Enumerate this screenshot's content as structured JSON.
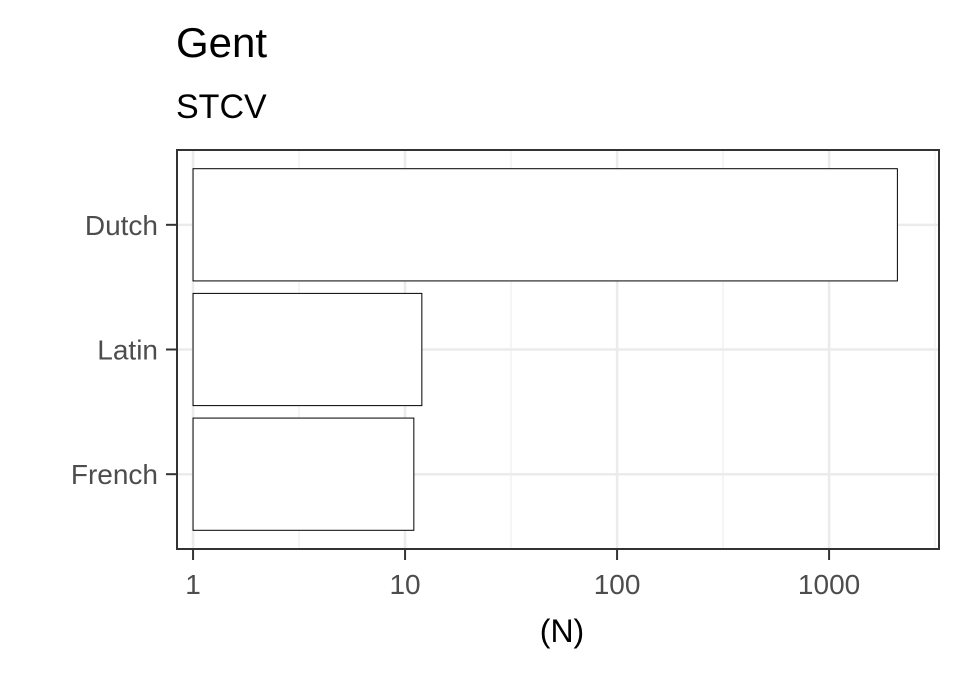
{
  "chart_data": {
    "type": "bar",
    "orientation": "horizontal",
    "title": "Gent",
    "subtitle": "STCV",
    "xlabel": "(N)",
    "ylabel": "",
    "x_scale": "log10",
    "xlim": [
      0.84,
      3300
    ],
    "categories": [
      "Dutch",
      "Latin",
      "French"
    ],
    "values": [
      2100,
      12,
      11
    ],
    "x_ticks": [
      1,
      10,
      100,
      1000
    ],
    "x_tick_labels": [
      "1",
      "10",
      "100",
      "1000"
    ],
    "grid": true,
    "legend": "none",
    "colors": {
      "bar_fill": "#ffffff",
      "bar_stroke": "#000000",
      "panel_border": "#333333",
      "grid_major": "#ebebeb",
      "grid_minor": "#f2f2f2",
      "tick_text": "#4d4d4d",
      "title_text": "#000000"
    }
  }
}
